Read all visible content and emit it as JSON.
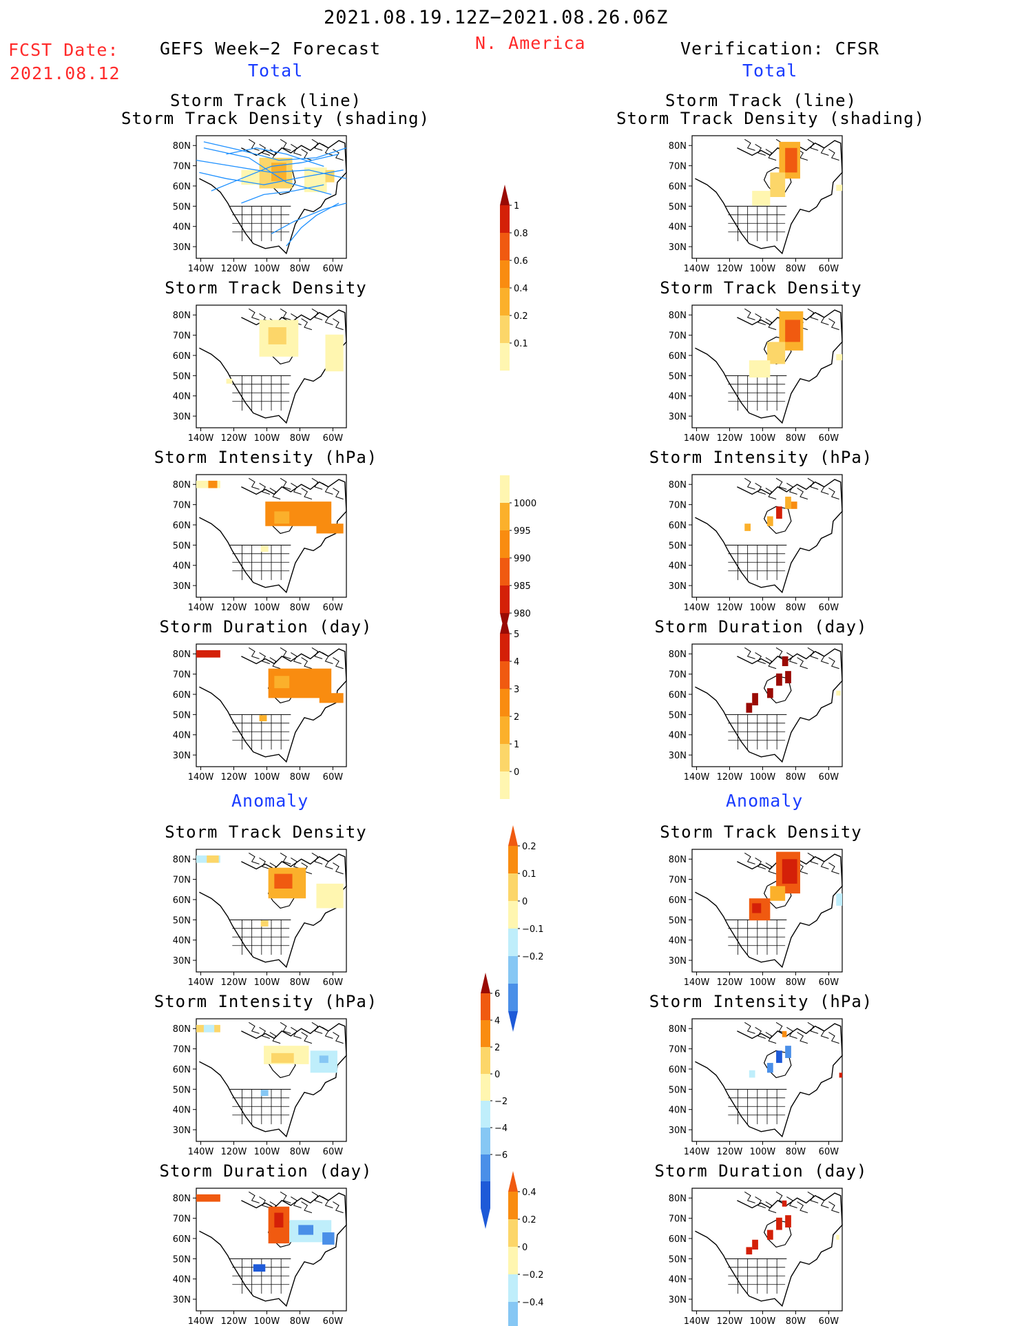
{
  "header": {
    "period": "2021.08.19.12Z−2021.08.26.06Z",
    "region": "N. America",
    "fcst_label": "FCST Date:",
    "fcst_date": "2021.08.12",
    "left_title": "GEFS Week−2 Forecast",
    "right_title": "Verification: CFSR",
    "total_label": "Total",
    "anomaly_label": "Anomaly"
  },
  "panel_titles": {
    "track_line": "Storm Track (line)",
    "track_density_shading": "Storm Track Density (shading)",
    "track_density": "Storm Track Density",
    "intensity": "Storm Intensity (hPa)",
    "duration": "Storm Duration (day)"
  },
  "map_axes": {
    "lat_ticks": [
      "80N",
      "70N",
      "60N",
      "50N",
      "40N",
      "30N"
    ],
    "lon_ticks": [
      "140W",
      "120W",
      "100W",
      "80W",
      "60W"
    ]
  },
  "colors": {
    "c1": "#fff6b0",
    "c2": "#fcd669",
    "c3": "#fbb02b",
    "c4": "#f98c10",
    "c5": "#f05a10",
    "c6": "#d42008",
    "c7": "#9a0a04",
    "b1": "#bfeefb",
    "b2": "#86c7f4",
    "b3": "#4a8fe8",
    "b4": "#1e5ad8",
    "track": "#1e90ff"
  },
  "chart_data": [
    {
      "type": "colorbar",
      "name": "track_density_total",
      "labels": [
        "1",
        "0.8",
        "0.6",
        "0.4",
        "0.2",
        "0.1"
      ],
      "colors": [
        "#d42008",
        "#f05a10",
        "#f98c10",
        "#fbb02b",
        "#fcd669",
        "#fff6b0"
      ],
      "top_arrow": "#9a0a04"
    },
    {
      "type": "colorbar",
      "name": "intensity_total",
      "labels": [
        "1000",
        "995",
        "990",
        "985",
        "980"
      ],
      "colors": [
        "#fff6b0",
        "#fbb02b",
        "#f98c10",
        "#f05a10",
        "#d42008"
      ],
      "bottom_arrow": "#9a0a04"
    },
    {
      "type": "colorbar",
      "name": "duration_total",
      "labels": [
        "5",
        "4",
        "3",
        "2",
        "1",
        "0"
      ],
      "colors": [
        "#d42008",
        "#f05a10",
        "#f98c10",
        "#fbb02b",
        "#fcd669",
        "#fff6b0"
      ],
      "top_arrow": "#9a0a04"
    },
    {
      "type": "colorbar",
      "name": "track_density_anomaly",
      "labels": [
        "0.2",
        "0.1",
        "0",
        "−0.1",
        "−0.2"
      ],
      "colors": [
        "#f98c10",
        "#fcd669",
        "#fff6b0",
        "#bfeefb",
        "#86c7f4",
        "#4a8fe8"
      ],
      "top_arrow": "#f05a10",
      "bottom_arrow": "#1e5ad8"
    },
    {
      "type": "colorbar",
      "name": "intensity_anomaly",
      "labels": [
        "6",
        "4",
        "2",
        "0",
        "−2",
        "−4",
        "−6"
      ],
      "colors": [
        "#f05a10",
        "#f98c10",
        "#fcd669",
        "#fff6b0",
        "#bfeefb",
        "#86c7f4",
        "#4a8fe8",
        "#1e5ad8"
      ],
      "top_arrow": "#9a0a04",
      "bottom_arrow": "#1e5ad8"
    },
    {
      "type": "colorbar",
      "name": "duration_anomaly",
      "labels": [
        "0.4",
        "0.2",
        "0",
        "−0.2",
        "−0.4"
      ],
      "colors": [
        "#f98c10",
        "#fcd669",
        "#fff6b0",
        "#bfeefb",
        "#86c7f4",
        "#4a8fe8"
      ],
      "top_arrow": "#f05a10",
      "bottom_arrow": "#1e5ad8"
    }
  ]
}
